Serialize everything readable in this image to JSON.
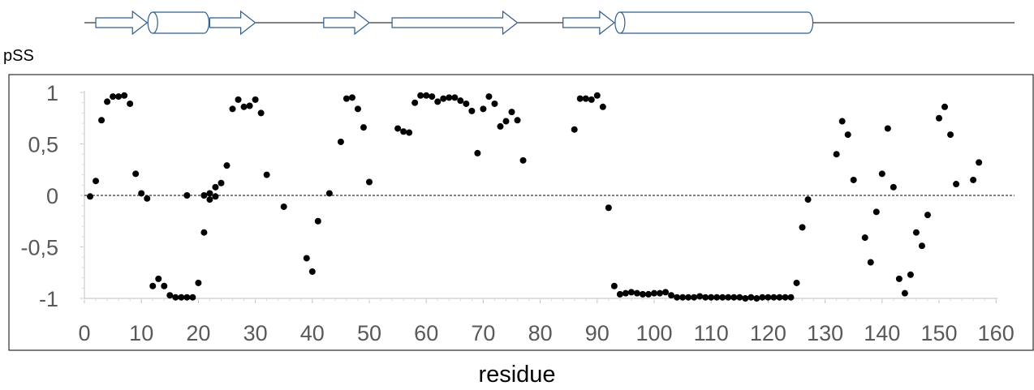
{
  "chart_data": {
    "type": "scatter",
    "ylabel": "pSS",
    "xlabel": "residue",
    "xlim": [
      0,
      160
    ],
    "ylim": [
      -1,
      1
    ],
    "x_ticks": [
      "0",
      "10",
      "20",
      "30",
      "40",
      "50",
      "60",
      "70",
      "80",
      "90",
      "100",
      "110",
      "120",
      "130",
      "140",
      "150",
      "160"
    ],
    "y_ticks": [
      "1",
      "0,5",
      "0",
      "-0,5",
      "-1"
    ],
    "zero_line": "dashed",
    "marker_color": "#000000",
    "topology_color": "#2e5d8e",
    "topology": [
      {
        "type": "strand",
        "start": 2,
        "end": 11
      },
      {
        "type": "helix",
        "start": 12,
        "end": 21
      },
      {
        "type": "strand",
        "start": 22,
        "end": 30
      },
      {
        "type": "strand",
        "start": 42,
        "end": 50
      },
      {
        "type": "strand",
        "start": 54,
        "end": 76
      },
      {
        "type": "strand",
        "start": 84,
        "end": 93
      },
      {
        "type": "helix",
        "start": 94,
        "end": 127
      }
    ],
    "series": [
      {
        "points": [
          [
            1,
            -0.01
          ],
          [
            2,
            0.14
          ],
          [
            3,
            0.73
          ],
          [
            4,
            0.91
          ],
          [
            5,
            0.96
          ],
          [
            6,
            0.96
          ],
          [
            7,
            0.97
          ],
          [
            8,
            0.89
          ],
          [
            9,
            0.21
          ],
          [
            10,
            0.02
          ],
          [
            11,
            -0.03
          ],
          [
            12,
            -0.88
          ],
          [
            13,
            -0.81
          ],
          [
            14,
            -0.88
          ],
          [
            15,
            -0.97
          ],
          [
            16,
            -0.99
          ],
          [
            17,
            -0.99
          ],
          [
            18,
            -0.99
          ],
          [
            18,
            0.0
          ],
          [
            19,
            -0.99
          ],
          [
            20,
            -0.85
          ],
          [
            21,
            -0.36
          ],
          [
            21,
            0.0
          ],
          [
            22,
            -0.04
          ],
          [
            22,
            0.02
          ],
          [
            23,
            -0.01
          ],
          [
            23,
            0.08
          ],
          [
            24,
            0.12
          ],
          [
            25,
            0.29
          ],
          [
            26,
            0.84
          ],
          [
            27,
            0.93
          ],
          [
            28,
            0.86
          ],
          [
            29,
            0.87
          ],
          [
            30,
            0.93
          ],
          [
            31,
            0.8
          ],
          [
            32,
            0.2
          ],
          [
            35,
            -0.11
          ],
          [
            39,
            -0.61
          ],
          [
            40,
            -0.74
          ],
          [
            41,
            -0.25
          ],
          [
            43,
            0.02
          ],
          [
            45,
            0.52
          ],
          [
            46,
            0.94
          ],
          [
            47,
            0.95
          ],
          [
            48,
            0.84
          ],
          [
            49,
            0.66
          ],
          [
            50,
            0.13
          ],
          [
            55,
            0.65
          ],
          [
            56,
            0.62
          ],
          [
            57,
            0.61
          ],
          [
            58,
            0.9
          ],
          [
            59,
            0.97
          ],
          [
            60,
            0.97
          ],
          [
            61,
            0.96
          ],
          [
            62,
            0.91
          ],
          [
            63,
            0.94
          ],
          [
            64,
            0.95
          ],
          [
            65,
            0.95
          ],
          [
            66,
            0.92
          ],
          [
            67,
            0.89
          ],
          [
            68,
            0.82
          ],
          [
            69,
            0.41
          ],
          [
            70,
            0.84
          ],
          [
            71,
            0.96
          ],
          [
            72,
            0.89
          ],
          [
            73,
            0.67
          ],
          [
            74,
            0.72
          ],
          [
            75,
            0.81
          ],
          [
            76,
            0.73
          ],
          [
            77,
            0.34
          ],
          [
            86,
            0.64
          ],
          [
            87,
            0.94
          ],
          [
            88,
            0.94
          ],
          [
            89,
            0.93
          ],
          [
            90,
            0.97
          ],
          [
            91,
            0.86
          ],
          [
            92,
            -0.12
          ],
          [
            93,
            -0.88
          ],
          [
            94,
            -0.96
          ],
          [
            95,
            -0.95
          ],
          [
            96,
            -0.94
          ],
          [
            97,
            -0.95
          ],
          [
            98,
            -0.96
          ],
          [
            99,
            -0.96
          ],
          [
            100,
            -0.95
          ],
          [
            101,
            -0.95
          ],
          [
            102,
            -0.94
          ],
          [
            103,
            -0.97
          ],
          [
            104,
            -0.99
          ],
          [
            105,
            -0.99
          ],
          [
            106,
            -0.99
          ],
          [
            107,
            -0.99
          ],
          [
            108,
            -0.98
          ],
          [
            109,
            -0.99
          ],
          [
            110,
            -0.99
          ],
          [
            111,
            -0.99
          ],
          [
            112,
            -0.99
          ],
          [
            113,
            -0.99
          ],
          [
            114,
            -0.99
          ],
          [
            115,
            -0.99
          ],
          [
            116,
            -1.0
          ],
          [
            117,
            -0.99
          ],
          [
            118,
            -1.0
          ],
          [
            119,
            -0.99
          ],
          [
            120,
            -0.99
          ],
          [
            121,
            -0.99
          ],
          [
            122,
            -0.99
          ],
          [
            123,
            -0.99
          ],
          [
            124,
            -0.99
          ],
          [
            125,
            -0.85
          ],
          [
            126,
            -0.31
          ],
          [
            127,
            -0.04
          ],
          [
            132,
            0.4
          ],
          [
            133,
            0.72
          ],
          [
            134,
            0.59
          ],
          [
            135,
            0.15
          ],
          [
            137,
            -0.41
          ],
          [
            138,
            -0.65
          ],
          [
            139,
            -0.16
          ],
          [
            140,
            0.21
          ],
          [
            141,
            0.65
          ],
          [
            142,
            0.08
          ],
          [
            143,
            -0.81
          ],
          [
            144,
            -0.95
          ],
          [
            145,
            -0.77
          ],
          [
            146,
            -0.36
          ],
          [
            147,
            -0.49
          ],
          [
            148,
            -0.19
          ],
          [
            150,
            0.75
          ],
          [
            151,
            0.86
          ],
          [
            152,
            0.59
          ],
          [
            153,
            0.11
          ],
          [
            156,
            0.15
          ],
          [
            157,
            0.32
          ]
        ]
      }
    ]
  }
}
